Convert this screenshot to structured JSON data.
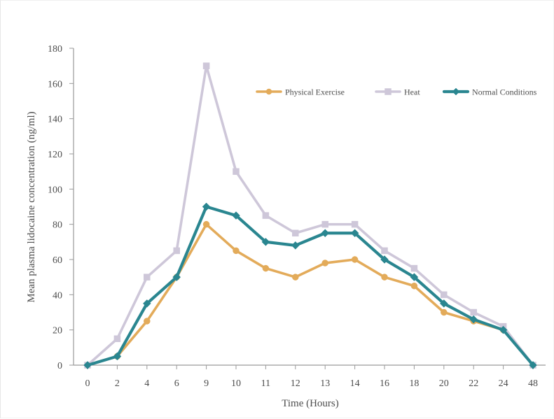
{
  "chart_data": {
    "type": "line",
    "title": "",
    "xlabel": "Time (Hours)",
    "ylabel": "Mean plasma lidocaine concentration (ng/ml)",
    "categories": [
      "0",
      "2",
      "4",
      "6",
      "9",
      "10",
      "11",
      "12",
      "13",
      "14",
      "16",
      "18",
      "20",
      "22",
      "24",
      "48"
    ],
    "yticks": [
      "0",
      "20",
      "40",
      "60",
      "80",
      "100",
      "120",
      "140",
      "160",
      "180"
    ],
    "ylim": [
      0,
      180
    ],
    "grid": false,
    "legend_position": "top-right",
    "series": [
      {
        "name": "Physical Exercise",
        "color": "#e3ab5a",
        "marker": "circle",
        "values": [
          0,
          5,
          25,
          50,
          80,
          65,
          55,
          50,
          58,
          60,
          50,
          45,
          30,
          25,
          20,
          0
        ]
      },
      {
        "name": "Heat",
        "color": "#cec7d9",
        "marker": "square",
        "values": [
          0,
          15,
          50,
          65,
          170,
          110,
          85,
          75,
          80,
          80,
          65,
          55,
          40,
          30,
          22,
          0
        ]
      },
      {
        "name": "Normal Conditions",
        "color": "#2a8690",
        "marker": "diamond",
        "values": [
          0,
          5,
          35,
          50,
          90,
          85,
          70,
          68,
          75,
          75,
          60,
          50,
          35,
          26,
          20,
          0
        ]
      }
    ]
  }
}
